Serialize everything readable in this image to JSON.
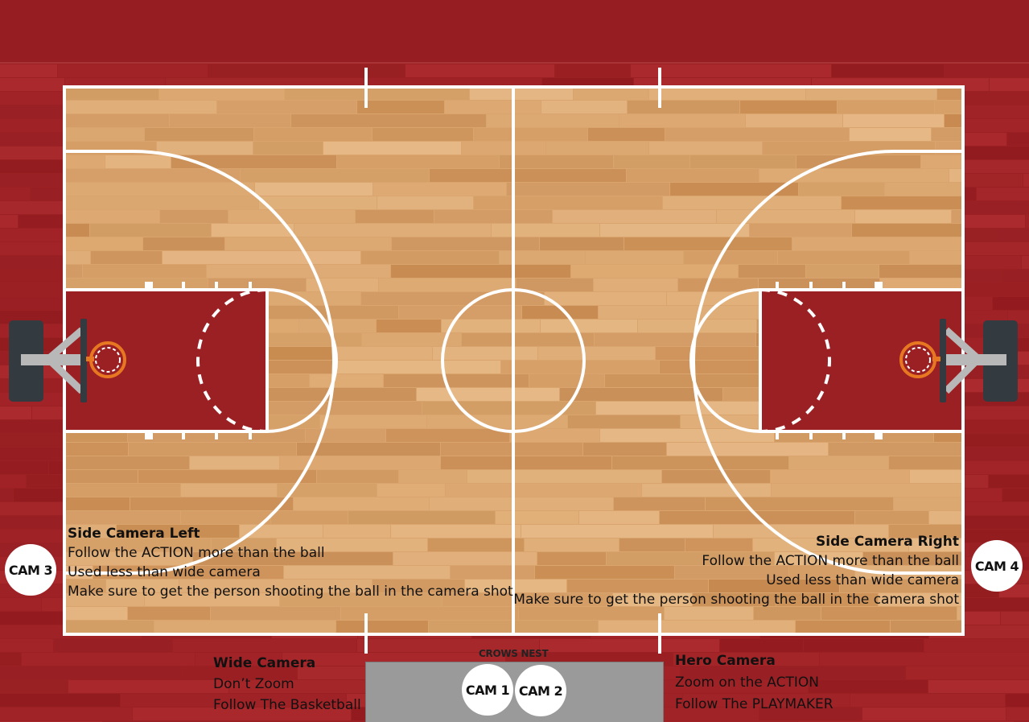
{
  "colors": {
    "floor_outer": "#9b2024",
    "wood_base": "#d9a46e",
    "paint": "#9b2024",
    "lines": "#ffffff",
    "crows_nest": "#9a9a9a"
  },
  "side_left": {
    "title": "Side Camera Left",
    "lines": [
      "Follow the ACTION more than the ball",
      "Used less than wide camera",
      "Make sure to get the person shooting the ball in the camera shot"
    ]
  },
  "side_right": {
    "title": "Side Camera Right",
    "lines": [
      "Follow the ACTION more than the ball",
      "Used less than wide camera",
      "Make sure to get the person shooting the ball in the camera shot"
    ]
  },
  "wide": {
    "title": "Wide Camera",
    "lines": [
      "Don’t Zoom",
      "Follow The Basketball"
    ]
  },
  "hero": {
    "title": "Hero Camera",
    "lines": [
      "Zoom on the ACTION",
      "Follow The PLAYMAKER"
    ]
  },
  "crows_nest": {
    "label": "CROWS NEST"
  },
  "cams": {
    "cam1": "CAM 1",
    "cam2": "CAM 2",
    "cam3": "CAM 3",
    "cam4": "CAM 4"
  }
}
